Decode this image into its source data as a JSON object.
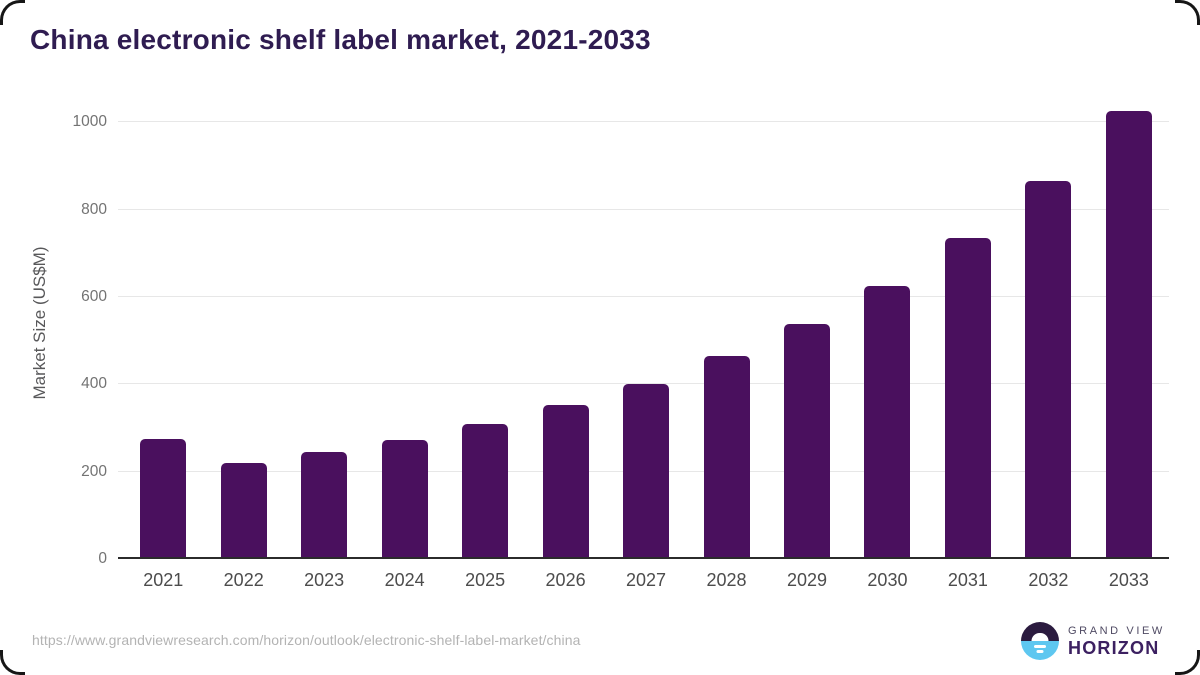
{
  "chart_data": {
    "type": "bar",
    "title": "China electronic shelf label market, 2021-2033",
    "categories": [
      "2021",
      "2022",
      "2023",
      "2024",
      "2025",
      "2026",
      "2027",
      "2028",
      "2029",
      "2030",
      "2031",
      "2032",
      "2033"
    ],
    "values": [
      276,
      221,
      246,
      273,
      310,
      352,
      401,
      464,
      538,
      626,
      735,
      866,
      1025
    ],
    "xlabel": "",
    "ylabel": "Market Size (US$M)",
    "ylim": [
      0,
      1000
    ],
    "yticks": [
      0,
      200,
      400,
      600,
      800,
      1000
    ],
    "grid": true,
    "legend_position": "none",
    "bar_color": "#4a105e"
  },
  "footer": {
    "source_url": "https://www.grandviewresearch.com/horizon/outlook/electronic-shelf-label-market/china",
    "logo": {
      "line1": "GRAND VIEW",
      "line2": "HORIZON"
    }
  },
  "colors": {
    "title_text": "#2f1c51",
    "bar": "#4a105e",
    "gridline": "#e7e7e7",
    "axis_line": "#2b2b2b",
    "tick_text": "#737373",
    "x_label_text": "#4c4c4c",
    "url_text": "#b3b3b3",
    "logo_dark": "#2b1b3f",
    "logo_blue": "#5ec7f0"
  }
}
